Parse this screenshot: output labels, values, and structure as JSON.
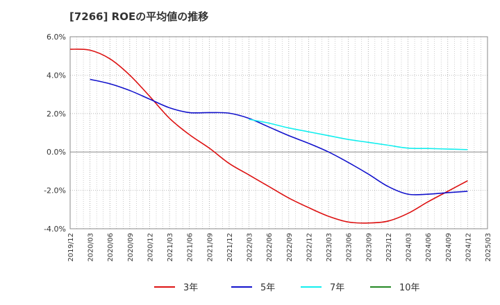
{
  "chart_data": {
    "type": "line",
    "title": "[7266]  ROEの平均値の推移",
    "xlabel": "",
    "ylabel": "",
    "ylim": [
      -4.0,
      6.0
    ],
    "ytick_labels": [
      "6.0%",
      "4.0%",
      "2.0%",
      "0.0%",
      "-2.0%",
      "-4.0%"
    ],
    "ytick_values": [
      6.0,
      4.0,
      2.0,
      0.0,
      -2.0,
      -4.0
    ],
    "x_ticks": [
      "2019/12",
      "2020/03",
      "2020/06",
      "2020/09",
      "2020/12",
      "2021/03",
      "2021/06",
      "2021/09",
      "2021/12",
      "2022/03",
      "2022/06",
      "2022/09",
      "2022/12",
      "2023/03",
      "2023/06",
      "2023/09",
      "2023/12",
      "2024/03",
      "2024/06",
      "2024/09",
      "2024/12",
      "2025/03"
    ],
    "grid": true,
    "legend_position": "bottom",
    "series": [
      {
        "name": "3年",
        "color": "#dd1111",
        "points": [
          [
            "2019/12",
            5.35
          ],
          [
            "2020/03",
            5.3
          ],
          [
            "2020/06",
            4.85
          ],
          [
            "2020/09",
            4.0
          ],
          [
            "2020/12",
            2.9
          ],
          [
            "2021/03",
            1.75
          ],
          [
            "2021/06",
            0.9
          ],
          [
            "2021/09",
            0.2
          ],
          [
            "2021/12",
            -0.6
          ],
          [
            "2022/03",
            -1.2
          ],
          [
            "2022/06",
            -1.8
          ],
          [
            "2022/09",
            -2.4
          ],
          [
            "2022/12",
            -2.9
          ],
          [
            "2023/03",
            -3.35
          ],
          [
            "2023/06",
            -3.65
          ],
          [
            "2023/09",
            -3.7
          ],
          [
            "2023/12",
            -3.6
          ],
          [
            "2024/03",
            -3.2
          ],
          [
            "2024/06",
            -2.6
          ],
          [
            "2024/09",
            -2.05
          ],
          [
            "2024/12",
            -1.5
          ]
        ]
      },
      {
        "name": "5年",
        "color": "#1111cc",
        "points": [
          [
            "2020/03",
            3.78
          ],
          [
            "2020/06",
            3.55
          ],
          [
            "2020/09",
            3.2
          ],
          [
            "2020/12",
            2.75
          ],
          [
            "2021/03",
            2.3
          ],
          [
            "2021/06",
            2.05
          ],
          [
            "2021/09",
            2.05
          ],
          [
            "2021/12",
            2.02
          ],
          [
            "2022/03",
            1.75
          ],
          [
            "2022/06",
            1.3
          ],
          [
            "2022/09",
            0.85
          ],
          [
            "2022/12",
            0.45
          ],
          [
            "2023/03",
            0.0
          ],
          [
            "2023/06",
            -0.55
          ],
          [
            "2023/09",
            -1.15
          ],
          [
            "2023/12",
            -1.8
          ],
          [
            "2024/03",
            -2.2
          ],
          [
            "2024/06",
            -2.2
          ],
          [
            "2024/09",
            -2.12
          ],
          [
            "2024/12",
            -2.05
          ]
        ]
      },
      {
        "name": "7年",
        "color": "#11eeee",
        "points": [
          [
            "2022/03",
            1.7
          ],
          [
            "2022/06",
            1.5
          ],
          [
            "2022/09",
            1.25
          ],
          [
            "2022/12",
            1.05
          ],
          [
            "2023/03",
            0.85
          ],
          [
            "2023/06",
            0.65
          ],
          [
            "2023/09",
            0.5
          ],
          [
            "2023/12",
            0.35
          ],
          [
            "2024/03",
            0.2
          ],
          [
            "2024/06",
            0.18
          ],
          [
            "2024/09",
            0.15
          ],
          [
            "2024/12",
            0.12
          ]
        ]
      },
      {
        "name": "10年",
        "color": "#228822",
        "points": []
      }
    ]
  }
}
